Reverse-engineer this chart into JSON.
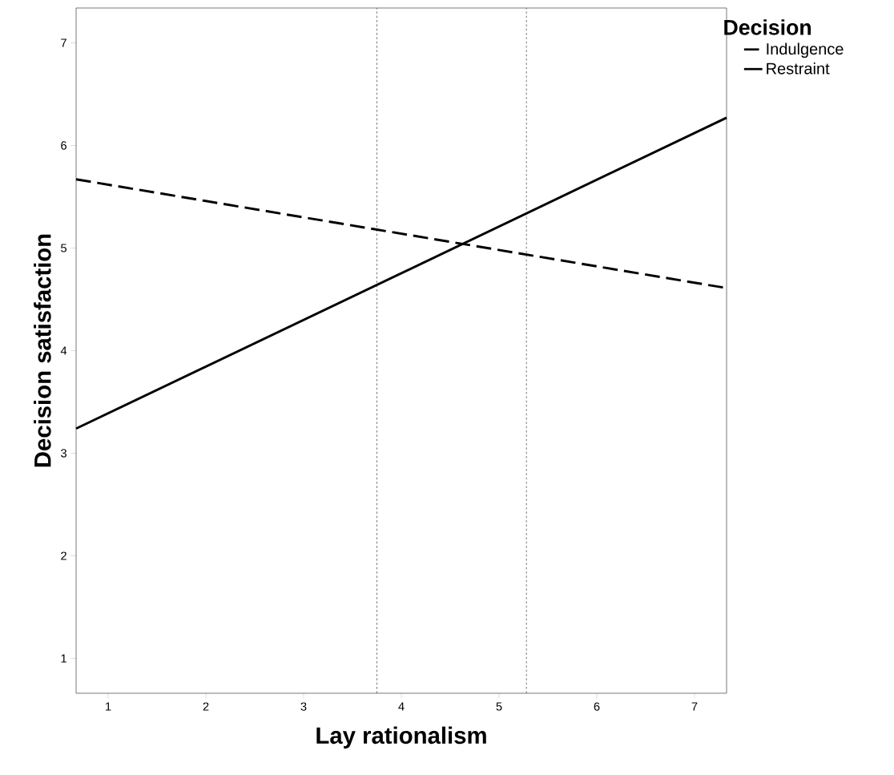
{
  "chart_data": {
    "type": "line",
    "xlabel": "Lay rationalism",
    "ylabel": "Decision satisfaction",
    "legend_title": "Decision",
    "x": [
      0.672,
      7.328
    ],
    "series": [
      {
        "name": "Indulgence",
        "color": "#000000",
        "line_style": "dashed",
        "values": [
          5.67,
          4.61
        ]
      },
      {
        "name": "Restraint",
        "color": "#000000",
        "line_style": "solid",
        "values": [
          3.24,
          6.27
        ]
      }
    ],
    "xlim": [
      0.672,
      7.328
    ],
    "ylim": [
      0.66,
      7.34
    ],
    "xticks": [
      1,
      2,
      3,
      4,
      5,
      6,
      7
    ],
    "yticks": [
      1,
      2,
      3,
      4,
      5,
      6,
      7
    ],
    "ref_lines": [
      {
        "axis": "x",
        "value": 3.75,
        "color": "#555555",
        "line_style": "dotted"
      },
      {
        "axis": "x",
        "value": 5.28,
        "color": "#555555",
        "line_style": "dotted"
      }
    ],
    "grid": false,
    "legend": "top right",
    "marker": "none"
  }
}
